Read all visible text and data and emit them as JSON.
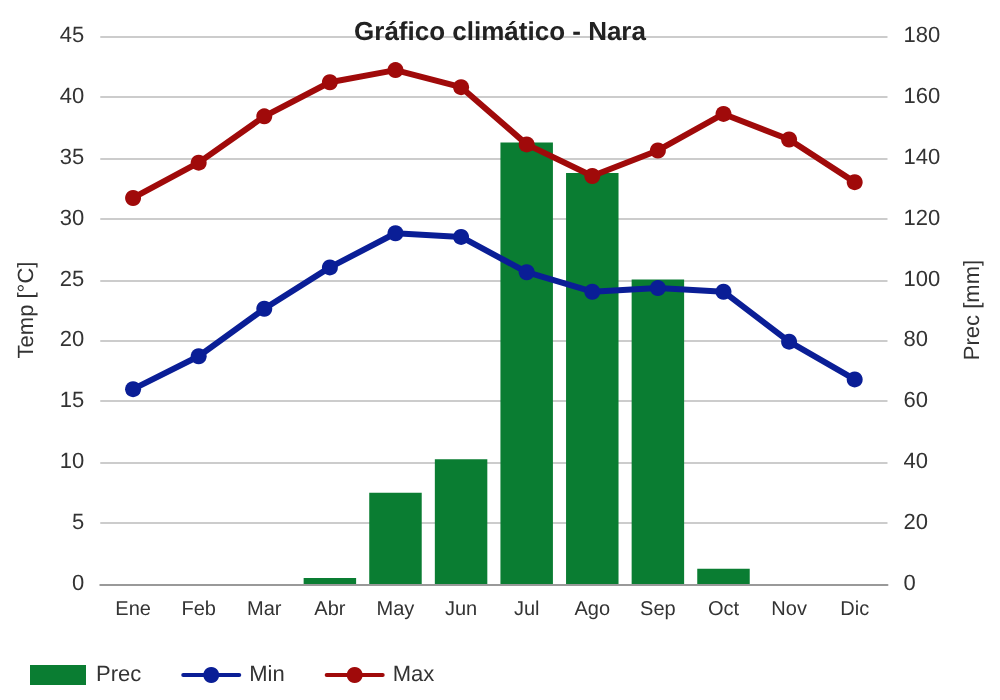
{
  "chart_data": {
    "type": "line",
    "title": "Gráfico climático - Nara",
    "ylabel": "Temp [°C]",
    "y2label": "Prec [mm]",
    "categories": [
      "Ene",
      "Feb",
      "Mar",
      "Abr",
      "May",
      "Jun",
      "Jul",
      "Ago",
      "Sep",
      "Oct",
      "Nov",
      "Dic"
    ],
    "series": [
      {
        "name": "Prec",
        "type": "bar",
        "axis": "y2",
        "color": "#0a7d32",
        "values": [
          0,
          0,
          0,
          2,
          30,
          41,
          145,
          135,
          100,
          5,
          0,
          0
        ]
      },
      {
        "name": "Min",
        "color": "#0a1e96",
        "values": [
          16.0,
          18.7,
          22.6,
          26.0,
          28.8,
          28.5,
          25.6,
          24.0,
          24.3,
          24.0,
          19.9,
          16.8
        ]
      },
      {
        "name": "Max",
        "color": "#a00a0a",
        "values": [
          31.7,
          34.6,
          38.4,
          41.2,
          42.2,
          40.8,
          36.1,
          33.5,
          35.6,
          38.6,
          36.5,
          33.0
        ]
      }
    ],
    "ylim": [
      0,
      45
    ],
    "yticks": [
      0,
      5,
      10,
      15,
      20,
      25,
      30,
      35,
      40,
      45
    ],
    "y2lim": [
      0,
      180
    ],
    "y2ticks": [
      0,
      20,
      40,
      60,
      80,
      100,
      120,
      140,
      160,
      180
    ],
    "grid": "y",
    "legend": "bottom",
    "marker": "circle",
    "line_style": "solid"
  }
}
